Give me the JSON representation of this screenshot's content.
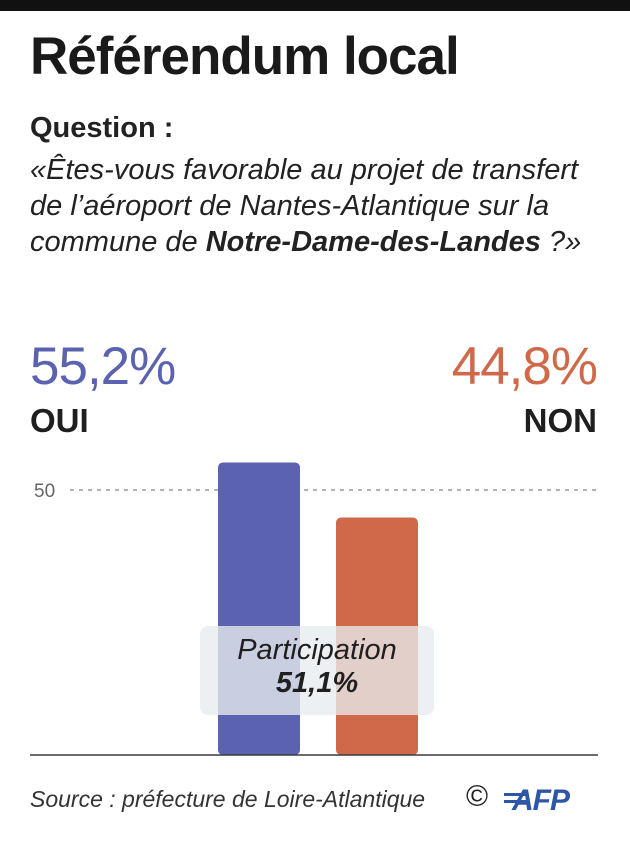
{
  "title": "Référendum local",
  "question": {
    "label": "Question :",
    "text_before": "«Êtes-vous favorable au projet de transfert de l’aéroport de Nantes-Atlantique sur la commune de ",
    "text_bold": "Notre-Dame-des-Landes",
    "text_after": " ?»"
  },
  "results": {
    "oui": {
      "percent": "55,2%",
      "label": "OUI"
    },
    "non": {
      "percent": "44,8%",
      "label": "NON"
    }
  },
  "participation": {
    "label": "Participation",
    "value": "51,1%"
  },
  "source": "Source : préfecture de Loire-Atlantique",
  "copyright": "©",
  "logo_text": "AFP",
  "colors": {
    "oui": "#5b63b0",
    "non": "#d0694a",
    "reference_line": "#9a9a9a",
    "axis": "#3a3a3a",
    "logo": "#2e56a6"
  },
  "chart_data": {
    "type": "bar",
    "categories": [
      "OUI",
      "NON"
    ],
    "values": [
      55.2,
      44.8
    ],
    "value_labels": [
      "55,2%",
      "44,8%"
    ],
    "ylim": [
      0,
      60
    ],
    "reference_lines": [
      {
        "value": 50,
        "label": "50"
      }
    ],
    "title": "Référendum local",
    "xlabel": "",
    "ylabel": ""
  }
}
